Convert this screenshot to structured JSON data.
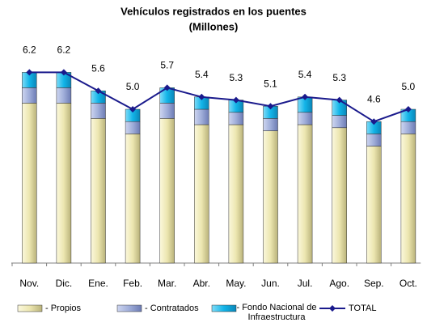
{
  "chart_data": {
    "type": "stacked_bar_line",
    "title": "Vehículos registrados en los puentes",
    "subtitle": "(Millones)",
    "categories": [
      "Nov.",
      "Dic.",
      "Ene.",
      "Feb.",
      "Mar.",
      "Abr.",
      "May.",
      "Jun.",
      "Jul.",
      "Ago.",
      "Sep.",
      "Oct."
    ],
    "series": [
      {
        "name": "- Propios",
        "color": "#ece6b0",
        "values": [
          5.2,
          5.2,
          4.7,
          4.2,
          4.7,
          4.5,
          4.5,
          4.3,
          4.5,
          4.4,
          3.8,
          4.2
        ]
      },
      {
        "name": "- Contratados",
        "color": "#9fadd9",
        "values": [
          0.5,
          0.5,
          0.5,
          0.4,
          0.5,
          0.5,
          0.4,
          0.4,
          0.4,
          0.4,
          0.4,
          0.4
        ]
      },
      {
        "name": "- Fondo Nacional de Infraestructura",
        "color": "#12b4e8",
        "values": [
          0.5,
          0.5,
          0.4,
          0.4,
          0.5,
          0.4,
          0.4,
          0.4,
          0.5,
          0.5,
          0.4,
          0.4
        ]
      },
      {
        "name": "TOTAL",
        "color": "#1a1a8c",
        "line": true,
        "values": [
          6.2,
          6.2,
          5.6,
          5.0,
          5.7,
          5.4,
          5.3,
          5.1,
          5.4,
          5.3,
          4.6,
          5.0
        ],
        "value_labels": [
          "6.2",
          "6.2",
          "5.6",
          "5.0",
          "5.7",
          "5.4",
          "5.3",
          "5.1",
          "5.4",
          "5.3",
          "4.6",
          "5.0"
        ]
      }
    ],
    "ylim": [
      0,
      7
    ]
  }
}
